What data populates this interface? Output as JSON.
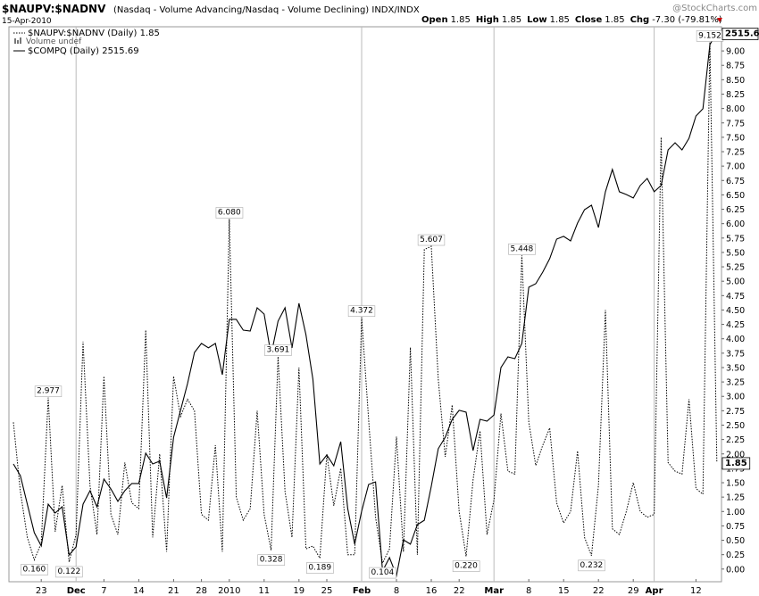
{
  "header": {
    "symbol": "$NAUPV:$NADNV",
    "description": "(Nasdaq - Volume Advancing/Nasdaq - Volume Declining) INDX/INDX",
    "date": "15-Apr-2010",
    "brand": "@StockCharts.com",
    "quote": [
      {
        "label": "Open",
        "value": "1.85"
      },
      {
        "label": "High",
        "value": "1.85"
      },
      {
        "label": "Low",
        "value": "1.85"
      },
      {
        "label": "Close",
        "value": "1.85"
      },
      {
        "label": "Chg",
        "value": "-7.30 (-79.81%)"
      }
    ],
    "volume_legend": "Volume undef"
  },
  "chart_data": {
    "type": "line",
    "categories": [
      null,
      null,
      null,
      null,
      "23",
      null,
      null,
      null,
      null,
      "Dec",
      null,
      null,
      null,
      "7",
      null,
      null,
      null,
      null,
      "14",
      null,
      null,
      null,
      null,
      "21",
      null,
      null,
      null,
      "28",
      null,
      null,
      null,
      "2010",
      null,
      null,
      null,
      null,
      "11",
      null,
      null,
      null,
      null,
      "19",
      null,
      null,
      null,
      "25",
      null,
      null,
      null,
      null,
      "Feb",
      null,
      null,
      null,
      null,
      "8",
      null,
      null,
      null,
      null,
      "16",
      null,
      null,
      null,
      "22",
      null,
      null,
      null,
      null,
      "Mar",
      null,
      null,
      null,
      null,
      "8",
      null,
      null,
      null,
      null,
      "15",
      null,
      null,
      null,
      null,
      "22",
      null,
      null,
      null,
      null,
      "29",
      null,
      null,
      "Apr",
      null,
      null,
      null,
      null,
      null,
      "12",
      null,
      null,
      null
    ],
    "series": [
      {
        "name": "$NAUPV:$NADNV (Daily) 1.85",
        "color": "#000000",
        "style": "dotted",
        "values": [
          2.55,
          1.35,
          0.55,
          0.16,
          0.45,
          2.977,
          0.65,
          1.45,
          0.122,
          0.6,
          3.95,
          1.45,
          0.6,
          3.35,
          0.95,
          0.6,
          1.85,
          1.15,
          1.05,
          4.15,
          0.55,
          2.0,
          0.3,
          3.35,
          2.65,
          2.95,
          2.75,
          0.95,
          0.85,
          2.15,
          0.3,
          6.08,
          1.25,
          0.85,
          1.05,
          2.75,
          0.95,
          0.328,
          3.691,
          1.35,
          0.55,
          3.5,
          0.35,
          0.4,
          0.189,
          2.0,
          1.1,
          1.75,
          0.25,
          0.25,
          4.372,
          2.6,
          0.9,
          0.104,
          0.35,
          2.3,
          0.3,
          3.85,
          0.25,
          5.55,
          5.607,
          3.3,
          1.95,
          2.85,
          1.0,
          0.22,
          1.55,
          2.4,
          0.6,
          1.2,
          2.7,
          1.7,
          1.65,
          5.448,
          2.55,
          1.8,
          2.15,
          2.45,
          1.15,
          0.8,
          1.0,
          2.05,
          0.55,
          0.232,
          1.45,
          4.5,
          0.7,
          0.6,
          1.0,
          1.5,
          1.0,
          0.9,
          0.95,
          7.5,
          1.85,
          1.7,
          1.65,
          2.95,
          1.4,
          1.3,
          9.152,
          1.85
        ],
        "value_labels": [
          null,
          null,
          null,
          "0.160",
          null,
          "2.977",
          null,
          null,
          "0.122",
          null,
          null,
          null,
          null,
          null,
          null,
          null,
          null,
          null,
          null,
          null,
          null,
          null,
          null,
          null,
          null,
          null,
          null,
          null,
          null,
          null,
          null,
          "6.080",
          null,
          null,
          null,
          null,
          null,
          "0.328",
          "3.691",
          null,
          null,
          null,
          null,
          null,
          "0.189",
          null,
          null,
          null,
          null,
          null,
          "4.372",
          null,
          null,
          "0.104",
          null,
          null,
          null,
          null,
          null,
          null,
          "5.607",
          null,
          null,
          null,
          null,
          "0.220",
          null,
          null,
          null,
          null,
          null,
          null,
          null,
          "5.448",
          null,
          null,
          null,
          null,
          null,
          null,
          null,
          null,
          null,
          "0.232",
          null,
          null,
          null,
          null,
          null,
          null,
          null,
          null,
          null,
          null,
          null,
          null,
          null,
          null,
          null,
          null,
          "9.152",
          null
        ]
      },
      {
        "name": "$COMPQ (Daily) 2515.69",
        "color": "#000000",
        "style": "solid",
        "axis": "y2",
        "values": [
          2204.6,
          2196.2,
          2175.6,
          2155.0,
          2145.4,
          2175.6,
          2169.2,
          2173.7,
          2138.9,
          2144.7,
          2175.6,
          2185.3,
          2173.7,
          2193.7,
          2186.6,
          2177.6,
          2185.3,
          2190.5,
          2190.5,
          2212.4,
          2204.6,
          2206.6,
          2180.1,
          2223.9,
          2243.3,
          2262.6,
          2285.1,
          2291.6,
          2288.4,
          2291.6,
          2269.0,
          2309.0,
          2309.0,
          2301.2,
          2300.6,
          2317.3,
          2312.8,
          2283.2,
          2307.7,
          2317.3,
          2288.4,
          2320.6,
          2298.0,
          2265.8,
          2204.6,
          2211.1,
          2203.3,
          2220.7,
          2172.4,
          2146.7,
          2170.5,
          2189.8,
          2191.7,
          2127.3,
          2137.0,
          2124.1,
          2149.9,
          2146.7,
          2160.8,
          2164.0,
          2188.5,
          2215.6,
          2223.9,
          2236.8,
          2243.3,
          2242.0,
          2214.3,
          2236.8,
          2235.5,
          2240.0,
          2274.2,
          2281.9,
          2280.6,
          2291.6,
          2332.2,
          2334.7,
          2343.1,
          2352.8,
          2366.9,
          2368.9,
          2365.6,
          2378.5,
          2388.2,
          2391.4,
          2375.3,
          2401.1,
          2417.2,
          2401.1,
          2399.1,
          2396.6,
          2405.6,
          2410.7,
          2401.1,
          2405.6,
          2431.3,
          2436.5,
          2431.3,
          2439.7,
          2455.8,
          2461.0,
          2507.3,
          2515.69
        ]
      }
    ],
    "ylim": [
      -0.22,
      9.42
    ],
    "y2lim": [
      2119.6,
      2520.2
    ],
    "yticks": [
      {
        "value": 0,
        "label": "0.00"
      },
      {
        "value": 0.25,
        "label": "0.25"
      },
      {
        "value": 0.5,
        "label": "0.50"
      },
      {
        "value": 0.75,
        "label": "0.75"
      },
      {
        "value": 1,
        "label": "1.00"
      },
      {
        "value": 1.25,
        "label": "1.25"
      },
      {
        "value": 1.5,
        "label": "1.50"
      },
      {
        "value": 1.75,
        "label": "1.75"
      },
      {
        "value": 2,
        "label": "2.00"
      },
      {
        "value": 2.25,
        "label": "2.25"
      },
      {
        "value": 2.5,
        "label": "2.50"
      },
      {
        "value": 2.75,
        "label": "2.75"
      },
      {
        "value": 3,
        "label": "3.00"
      },
      {
        "value": 3.25,
        "label": "3.25"
      },
      {
        "value": 3.5,
        "label": "3.50"
      },
      {
        "value": 3.75,
        "label": "3.75"
      },
      {
        "value": 4,
        "label": "4.00"
      },
      {
        "value": 4.25,
        "label": "4.25"
      },
      {
        "value": 4.5,
        "label": "4.50"
      },
      {
        "value": 4.75,
        "label": "4.75"
      },
      {
        "value": 5,
        "label": "5.00"
      },
      {
        "value": 5.25,
        "label": "5.25"
      },
      {
        "value": 5.5,
        "label": "5.50"
      },
      {
        "value": 5.75,
        "label": "5.75"
      },
      {
        "value": 6,
        "label": "6.00"
      },
      {
        "value": 6.25,
        "label": "6.25"
      },
      {
        "value": 6.5,
        "label": "6.50"
      },
      {
        "value": 6.75,
        "label": "6.75"
      },
      {
        "value": 7,
        "label": "7.00"
      },
      {
        "value": 7.25,
        "label": "7.25"
      },
      {
        "value": 7.5,
        "label": "7.50"
      },
      {
        "value": 7.75,
        "label": "7.75"
      },
      {
        "value": 8,
        "label": "8.00"
      },
      {
        "value": 8.25,
        "label": "8.25"
      },
      {
        "value": 8.5,
        "label": "8.50"
      },
      {
        "value": 8.75,
        "label": "8.75"
      },
      {
        "value": 9,
        "label": "9.00"
      }
    ],
    "ytick_side": "right"
  }
}
